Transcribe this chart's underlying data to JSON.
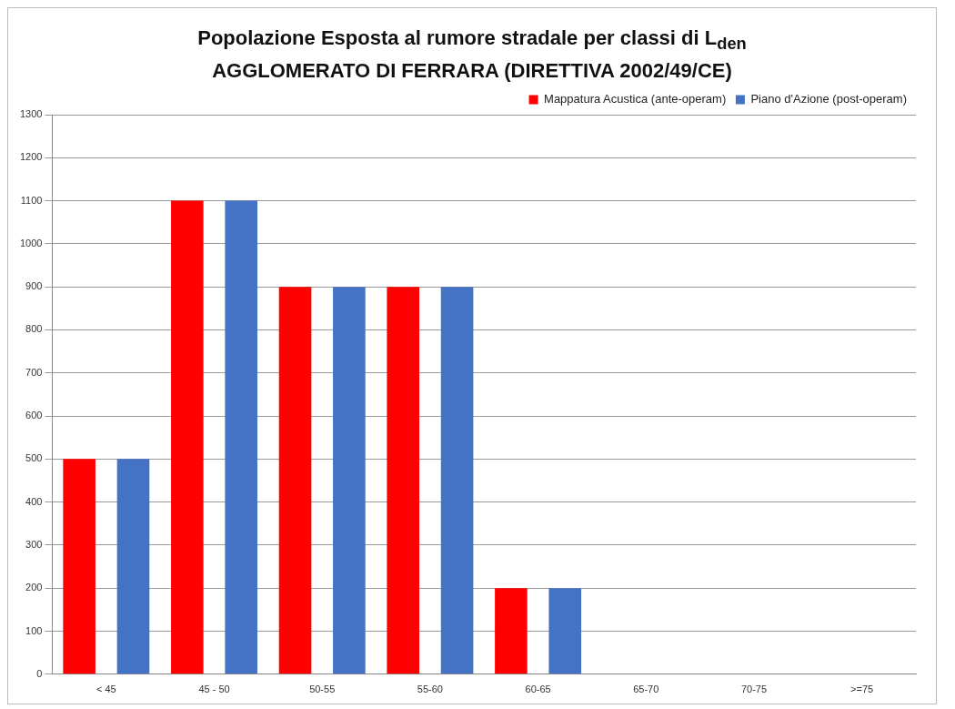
{
  "chart_data": {
    "type": "bar",
    "title": "Popolazione Esposta al rumore stradale per classi di L$_{den}$\nAGGLOMERATO DI FERRARA (DIRETTIVA 2002/49/CE)",
    "categories": [
      "< 45",
      "45 - 50",
      "50-55",
      "55-60",
      "60-65",
      "65-70",
      "70-75",
      ">=75"
    ],
    "series": [
      {
        "name": "Mappatura Acustica (ante-operam)",
        "color": "#ff0000",
        "values": [
          500,
          1100,
          900,
          900,
          200,
          0,
          0,
          0
        ]
      },
      {
        "name": "Piano d'Azione (post-operam)",
        "color": "#4472c4",
        "values": [
          500,
          1100,
          900,
          900,
          200,
          0,
          0,
          0
        ]
      }
    ],
    "ylim": [
      0,
      1300
    ],
    "yticks": [
      0,
      100,
      200,
      300,
      400,
      500,
      600,
      700,
      800,
      900,
      1000,
      1100,
      1200,
      1300
    ],
    "grid": "y",
    "legend": "top right"
  }
}
